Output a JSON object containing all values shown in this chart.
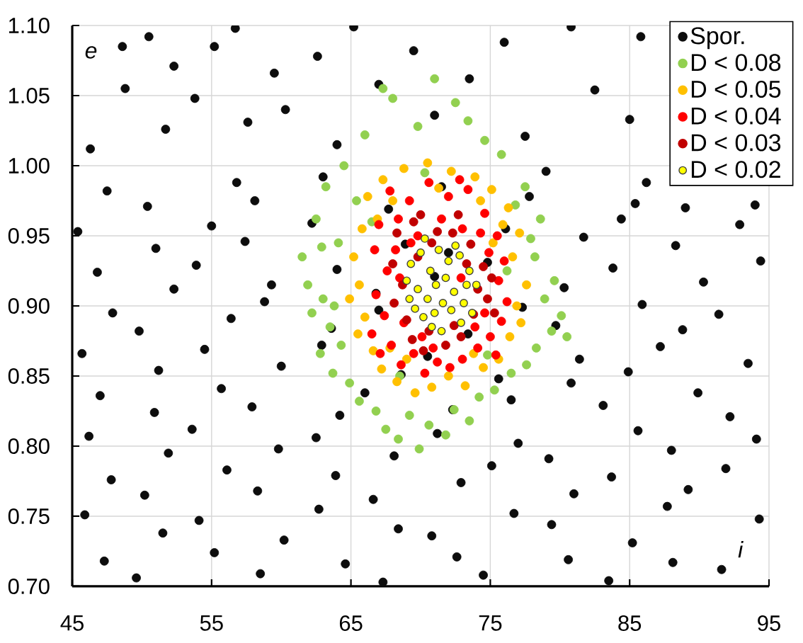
{
  "chart_data": {
    "type": "scatter",
    "xlabel": "i",
    "ylabel": "e",
    "xlim": [
      45,
      95
    ],
    "ylim": [
      0.7,
      1.1
    ],
    "xticks": [
      45,
      55,
      65,
      75,
      85,
      95
    ],
    "yticks": [
      {
        "value": 0.7,
        "label": "0.70"
      },
      0.75,
      {
        "value": 0.8,
        "label": "0.80"
      },
      0.85,
      {
        "value": 0.9,
        "label": "0.90"
      },
      0.95,
      {
        "value": 1.0,
        "label": "1.00"
      },
      1.05,
      {
        "value": 1.1,
        "label": "1.10"
      }
    ],
    "grid": true,
    "legend": "top right",
    "marker": "circle",
    "series": [
      {
        "name": "Spor.",
        "color": "#0d0d0d",
        "x": [
          47.3,
          49.6,
          55.2,
          58.5,
          64.6,
          67.3,
          72.6,
          74.5,
          80.6,
          83.5,
          88.1,
          91.6,
          45.9,
          51.5,
          54.1,
          60.2,
          62.7,
          68.4,
          70.8,
          76.7,
          79.4,
          85.2,
          87.7,
          94.3,
          47.8,
          50.2,
          56.1,
          58.3,
          63.9,
          66.6,
          72.9,
          75.1,
          81.0,
          83.7,
          89.2,
          91.9,
          46.2,
          51.9,
          53.6,
          59.8,
          62.5,
          68.1,
          71.2,
          77.0,
          79.2,
          85.6,
          88.0,
          94.1,
          47.0,
          50.9,
          55.7,
          57.9,
          64.2,
          66.0,
          72.3,
          76.5,
          80.8,
          83.1,
          89.9,
          92.2,
          45.7,
          51.2,
          54.5,
          60.0,
          62.9,
          68.6,
          70.5,
          75.6,
          81.4,
          84.9,
          87.2,
          93.5,
          47.9,
          49.8,
          56.4,
          58.8,
          63.6,
          67.0,
          73.4,
          77.3,
          79.7,
          85.9,
          88.8,
          91.4,
          46.8,
          52.3,
          53.9,
          59.3,
          64.0,
          66.8,
          71.0,
          74.8,
          80.3,
          83.8,
          90.3,
          94.4,
          45.4,
          51.0,
          55.0,
          57.4,
          62.2,
          68.9,
          72.0,
          76.1,
          81.7,
          84.4,
          88.3,
          92.9,
          47.5,
          50.4,
          56.8,
          58.1,
          63.0,
          67.7,
          71.5,
          77.8,
          79.0,
          85.4,
          89.0,
          94.0,
          46.3,
          48.6,
          48.8,
          50.5,
          51.7,
          52.3,
          53.8,
          55.2,
          56.7,
          57.6,
          59.5,
          60.3,
          62.6,
          64.0,
          65.2,
          67.0,
          69.5,
          71.0,
          73.5,
          76.0,
          77.5,
          80.8,
          82.5,
          85.0,
          85.8,
          86.2
        ],
        "values": [
          0.718,
          0.706,
          0.724,
          0.709,
          0.716,
          0.703,
          0.721,
          0.708,
          0.719,
          0.704,
          0.717,
          0.712,
          0.751,
          0.738,
          0.747,
          0.733,
          0.755,
          0.741,
          0.736,
          0.752,
          0.744,
          0.731,
          0.757,
          0.748,
          0.776,
          0.765,
          0.783,
          0.768,
          0.779,
          0.762,
          0.774,
          0.786,
          0.766,
          0.778,
          0.769,
          0.784,
          0.807,
          0.795,
          0.812,
          0.798,
          0.806,
          0.793,
          0.809,
          0.802,
          0.791,
          0.811,
          0.797,
          0.805,
          0.836,
          0.824,
          0.841,
          0.828,
          0.822,
          0.838,
          0.826,
          0.833,
          0.845,
          0.829,
          0.838,
          0.821,
          0.866,
          0.854,
          0.869,
          0.857,
          0.872,
          0.851,
          0.864,
          0.848,
          0.862,
          0.853,
          0.871,
          0.859,
          0.895,
          0.882,
          0.891,
          0.903,
          0.884,
          0.897,
          0.88,
          0.899,
          0.886,
          0.901,
          0.883,
          0.894,
          0.924,
          0.912,
          0.929,
          0.915,
          0.926,
          0.909,
          0.921,
          0.931,
          0.913,
          0.927,
          0.917,
          0.932,
          0.953,
          0.941,
          0.957,
          0.946,
          0.959,
          0.944,
          0.938,
          0.955,
          0.949,
          0.962,
          0.943,
          0.958,
          0.982,
          0.971,
          0.988,
          0.975,
          0.992,
          0.969,
          0.985,
          0.978,
          0.996,
          0.973,
          0.97,
          0.972,
          1.012,
          1.085,
          1.055,
          1.092,
          1.026,
          1.071,
          1.048,
          1.085,
          1.098,
          1.031,
          1.066,
          1.04,
          1.078,
          1.015,
          1.099,
          1.058,
          1.082,
          1.036,
          1.062,
          1.088,
          1.021,
          1.099,
          1.054,
          1.033,
          1.092,
          0.988
        ]
      },
      {
        "name": "D < 0.08",
        "color": "#92d050",
        "x": [
          67.3,
          68.0,
          71.0,
          72.5,
          73.4,
          66.0,
          69.8,
          74.6,
          75.8,
          64.5,
          77.5,
          78.6,
          63.2,
          62.5,
          61.5,
          62.9,
          61.9,
          63.0,
          62.2,
          63.8,
          63.5,
          64.3,
          62.8,
          63.7,
          64.9,
          65.6,
          66.8,
          67.5,
          68.4,
          69.2,
          69.9,
          70.6,
          71.8,
          72.4,
          73.5,
          74.2,
          75.3,
          76.5,
          77.6,
          78.3,
          79.4,
          80.5,
          80.1,
          78.9,
          79.6,
          78.2,
          77.9,
          76.8,
          70.3,
          66.5,
          65.4,
          64.1,
          76.2,
          68.5,
          74.8
        ],
        "values": [
          1.055,
          1.048,
          1.062,
          1.045,
          1.032,
          1.022,
          1.028,
          1.018,
          1.008,
          1.0,
          0.985,
          0.962,
          0.985,
          0.962,
          0.935,
          0.942,
          0.915,
          0.905,
          0.895,
          0.9,
          0.885,
          0.872,
          0.866,
          0.852,
          0.845,
          0.832,
          0.825,
          0.812,
          0.805,
          0.822,
          0.798,
          0.815,
          0.808,
          0.826,
          0.818,
          0.835,
          0.84,
          0.852,
          0.858,
          0.87,
          0.882,
          0.878,
          0.893,
          0.905,
          0.918,
          0.935,
          0.948,
          0.972,
          0.995,
          0.96,
          0.975,
          0.945,
          0.925,
          0.85,
          0.865
        ]
      },
      {
        "name": "D < 0.05",
        "color": "#ffc000",
        "x": [
          67.3,
          68.8,
          70.5,
          72.2,
          73.9,
          75.1,
          76.3,
          66.2,
          65.8,
          66.9,
          65.2,
          65.6,
          64.9,
          66.0,
          65.5,
          66.6,
          67.2,
          68.3,
          69.6,
          70.8,
          72.0,
          73.2,
          74.5,
          75.6,
          76.4,
          77.2,
          76.9,
          77.6,
          76.6,
          77.1,
          75.9,
          68.0,
          71.3,
          74.3,
          67.8,
          73.8,
          69.0,
          75.2
        ],
        "values": [
          0.99,
          0.998,
          1.002,
          0.996,
          0.992,
          0.983,
          0.97,
          0.978,
          0.955,
          0.962,
          0.935,
          0.915,
          0.905,
          0.892,
          0.88,
          0.868,
          0.855,
          0.846,
          0.838,
          0.842,
          0.85,
          0.843,
          0.856,
          0.862,
          0.878,
          0.888,
          0.9,
          0.915,
          0.935,
          0.952,
          0.958,
          0.975,
          0.984,
          0.975,
          0.87,
          0.866,
          0.862,
          0.945
        ]
      },
      {
        "name": "D < 0.04",
        "color": "#ff0000",
        "x": [
          67.8,
          69.2,
          70.6,
          72.0,
          73.4,
          74.6,
          67.0,
          68.4,
          75.5,
          66.7,
          67.6,
          66.8,
          67.4,
          66.5,
          67.9,
          68.6,
          69.5,
          70.3,
          71.2,
          72.1,
          73.0,
          74.1,
          75.0,
          75.8,
          76.2,
          75.6,
          76.0,
          74.9,
          69.8,
          71.5,
          73.0,
          68.2,
          67.1,
          75.4,
          70.9,
          74.3,
          68.8,
          73.9,
          68.5,
          69.3,
          74.6,
          72.9,
          70.1,
          72.8
        ],
        "values": [
          0.982,
          0.975,
          0.988,
          0.978,
          0.983,
          0.966,
          0.958,
          0.962,
          0.95,
          0.94,
          0.925,
          0.908,
          0.893,
          0.88,
          0.872,
          0.858,
          0.866,
          0.852,
          0.86,
          0.856,
          0.862,
          0.87,
          0.878,
          0.889,
          0.903,
          0.918,
          0.932,
          0.938,
          0.95,
          0.962,
          0.955,
          0.94,
          0.866,
          0.865,
          0.87,
          0.952,
          0.888,
          0.885,
          0.92,
          0.945,
          0.895,
          0.92,
          0.878,
          0.99
        ]
      },
      {
        "name": "D < 0.03",
        "color": "#c00000",
        "x": [
          68.3,
          69.5,
          70.8,
          72.3,
          73.6,
          74.5,
          68.0,
          68.7,
          68.1,
          69.0,
          69.4,
          70.6,
          71.8,
          72.9,
          73.8,
          74.8,
          75.1,
          74.1,
          69.8,
          71.2,
          72.7,
          70.0,
          73.3,
          75.3,
          70.2,
          72.4
        ],
        "values": [
          0.952,
          0.96,
          0.945,
          0.952,
          0.944,
          0.928,
          0.93,
          0.915,
          0.902,
          0.89,
          0.876,
          0.882,
          0.872,
          0.878,
          0.894,
          0.905,
          0.92,
          0.912,
          0.935,
          0.953,
          0.965,
          0.965,
          0.93,
          0.895,
          0.868,
          0.886
        ]
      },
      {
        "name": "D < 0.02",
        "color": "#ffff00",
        "x": [
          69.3,
          70.0,
          70.7,
          71.3,
          72.0,
          72.8,
          73.5,
          74.0,
          69.0,
          69.8,
          70.5,
          71.1,
          71.8,
          72.4,
          73.1,
          73.7,
          69.6,
          70.2,
          71.0,
          71.6,
          72.2,
          72.9,
          70.8,
          71.5,
          72.5,
          70.3,
          73.3,
          69.2
        ],
        "values": [
          0.93,
          0.938,
          0.925,
          0.94,
          0.932,
          0.936,
          0.925,
          0.915,
          0.918,
          0.912,
          0.905,
          0.915,
          0.92,
          0.91,
          0.902,
          0.895,
          0.898,
          0.892,
          0.895,
          0.902,
          0.897,
          0.888,
          0.885,
          0.882,
          0.943,
          0.948,
          0.915,
          0.905
        ]
      }
    ]
  }
}
